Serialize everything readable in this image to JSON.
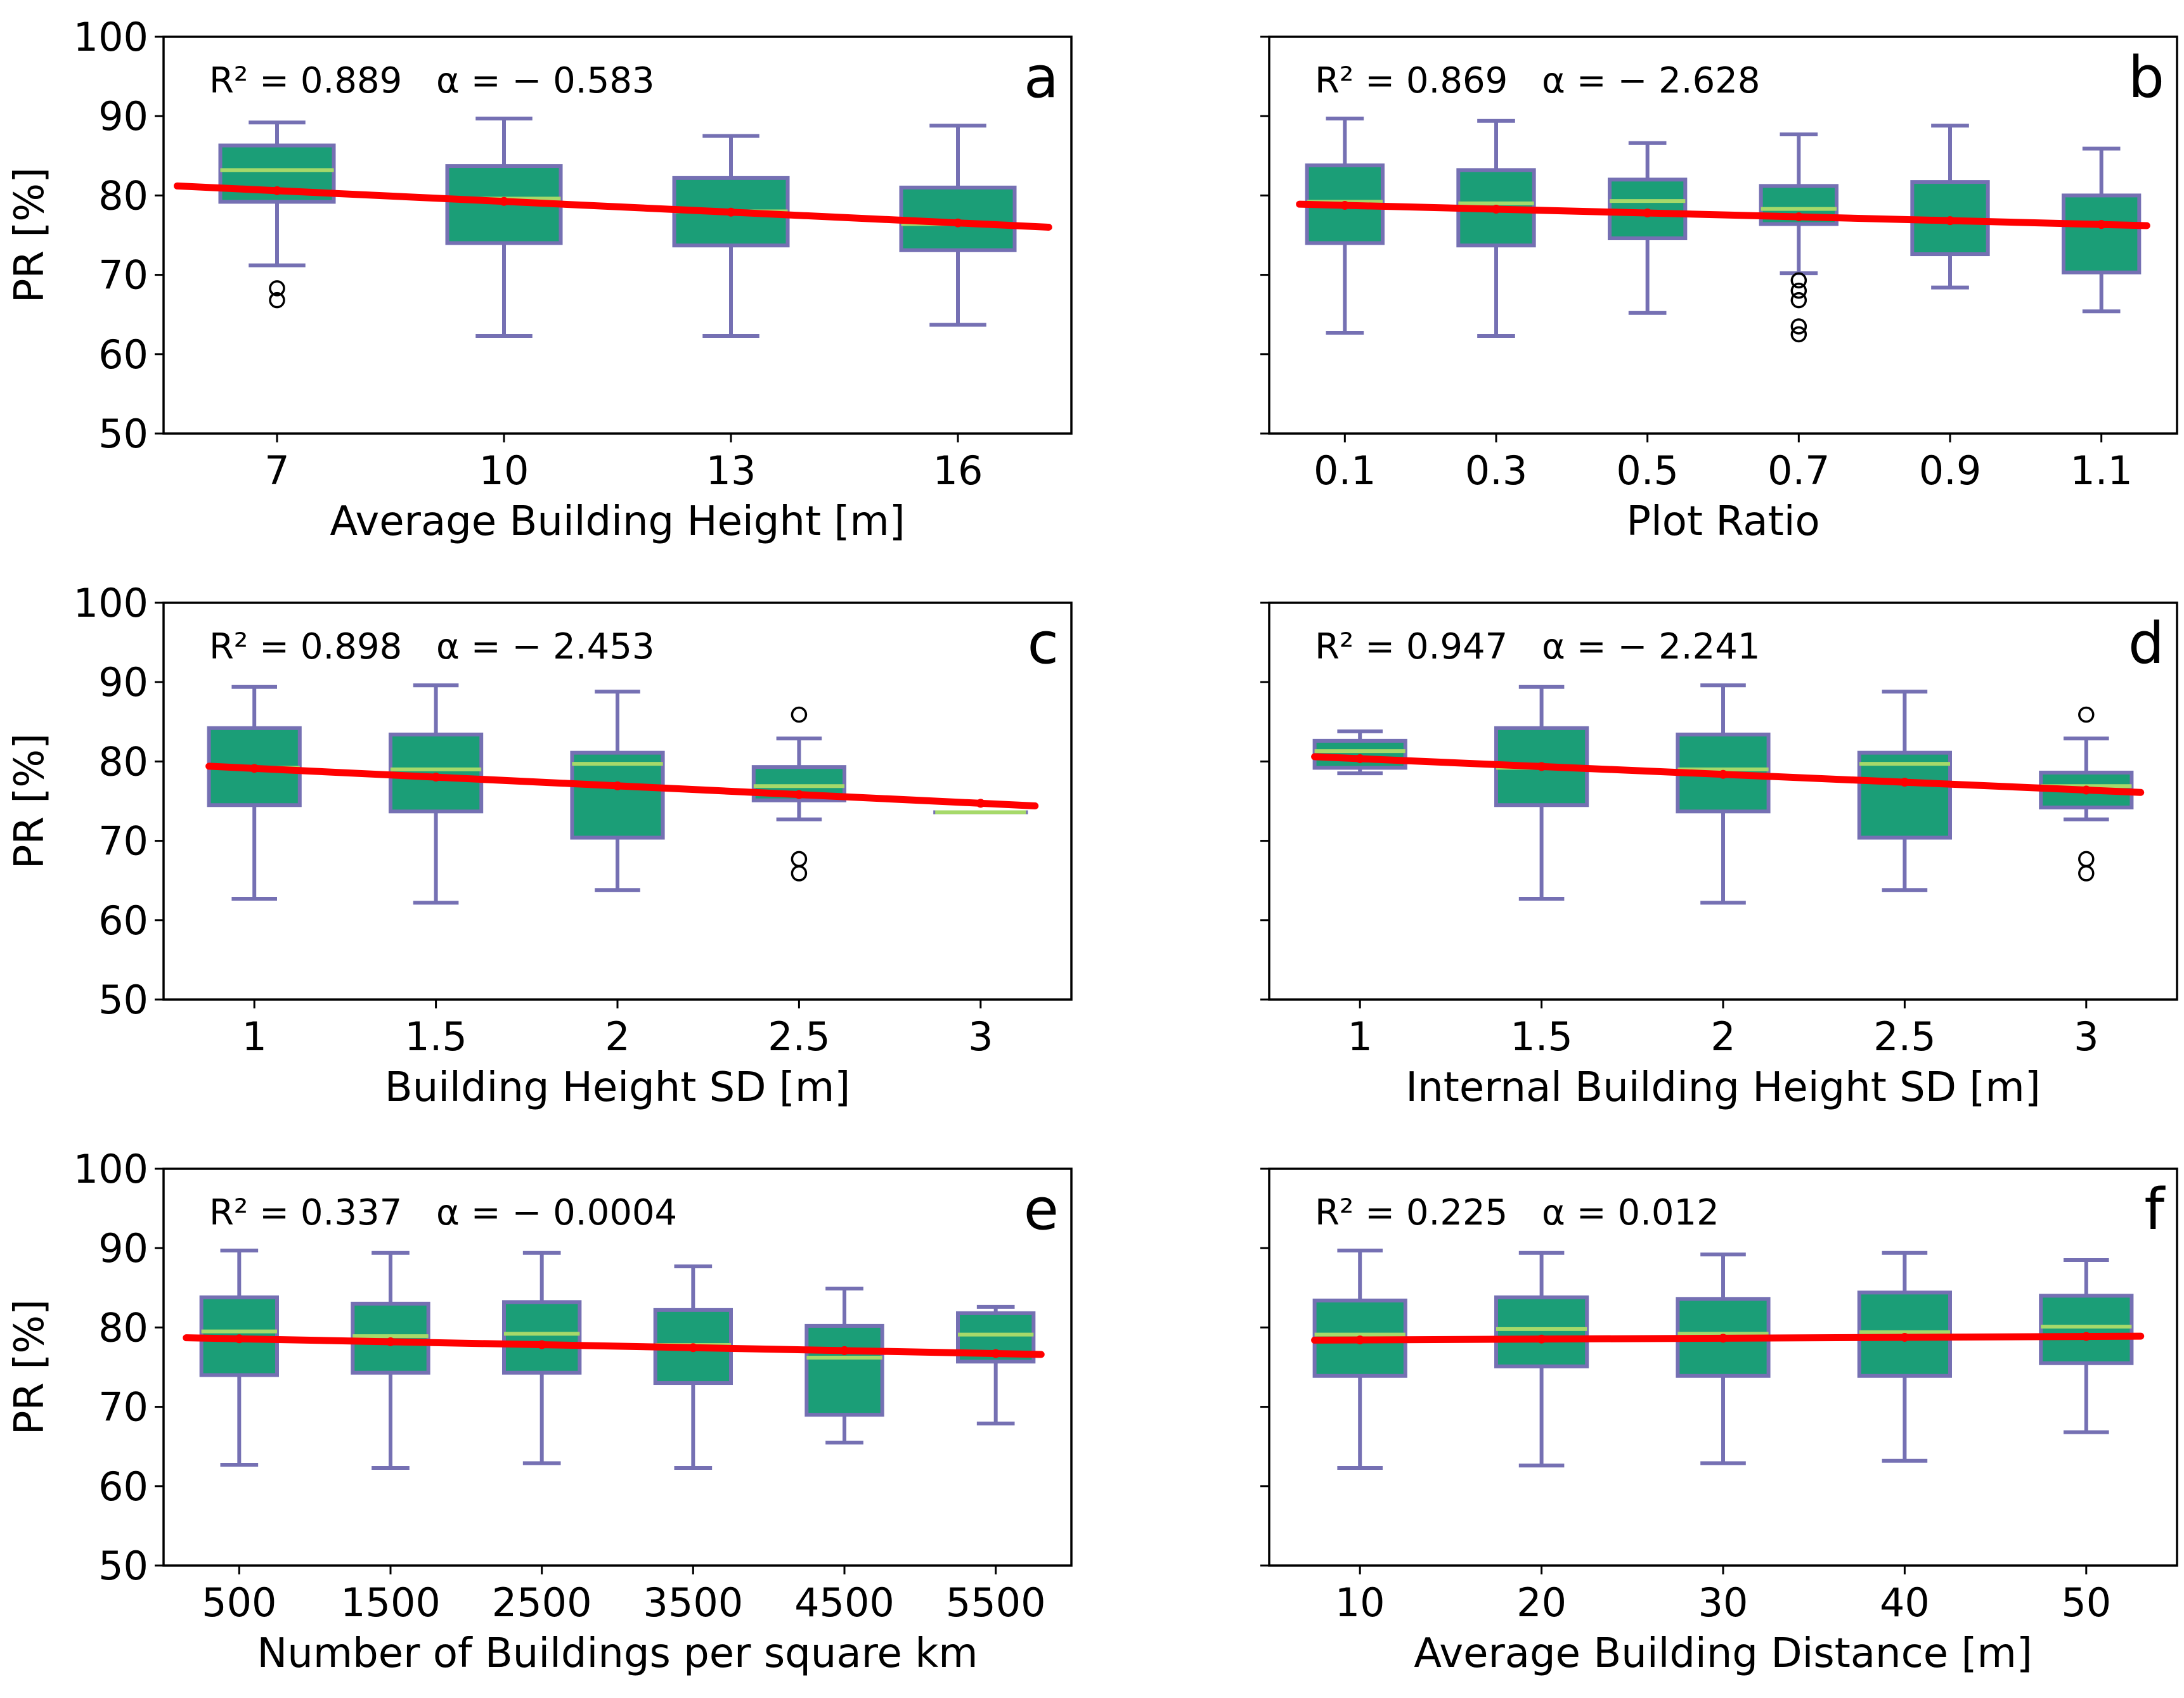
{
  "figure": {
    "y_axis_label": "PR [%]",
    "colors": {
      "box_fill": "#1b9e77",
      "box_edge": "#7570b3",
      "median": "#a6d96a",
      "fit_line": "#ff0000"
    }
  },
  "chart_data": [
    {
      "type": "box",
      "panel": "a",
      "r2_text": "R² = 0.889",
      "alpha_text": "α = − 0.583",
      "xlabel": "Average Building Height [m]",
      "ylabel": "PR [%]",
      "ylim": [
        50,
        100
      ],
      "yticks": [
        "50",
        "60",
        "70",
        "80",
        "90",
        "100"
      ],
      "categories": [
        "7",
        "10",
        "13",
        "16"
      ],
      "boxes": [
        {
          "whislo": 71.2,
          "q1": 79.2,
          "med": 83.2,
          "q3": 86.3,
          "whishi": 89.2,
          "fliers": [
            68.3,
            66.8
          ]
        },
        {
          "whislo": 62.3,
          "q1": 74.0,
          "med": 79.6,
          "q3": 83.7,
          "whishi": 89.7,
          "fliers": []
        },
        {
          "whislo": 62.3,
          "q1": 73.7,
          "med": 78.0,
          "q3": 82.2,
          "whishi": 87.5,
          "fliers": []
        },
        {
          "whislo": 63.7,
          "q1": 73.1,
          "med": 76.4,
          "q3": 81.0,
          "whishi": 88.8,
          "fliers": []
        }
      ],
      "fit": {
        "x_start": 0.56,
        "y_start": 81.2,
        "x_end": 4.4,
        "y_end": 76.0
      }
    },
    {
      "type": "box",
      "panel": "b",
      "r2_text": "R² = 0.869",
      "alpha_text": "α = − 2.628",
      "xlabel": "Plot Ratio",
      "ylabel": "",
      "ylim": [
        50,
        100
      ],
      "yticks": [],
      "categories": [
        "0.1",
        "0.3",
        "0.5",
        "0.7",
        "0.9",
        "1.1"
      ],
      "boxes": [
        {
          "whislo": 62.7,
          "q1": 74.0,
          "med": 79.2,
          "q3": 83.8,
          "whishi": 89.7,
          "fliers": []
        },
        {
          "whislo": 62.3,
          "q1": 73.7,
          "med": 79.0,
          "q3": 83.2,
          "whishi": 89.4,
          "fliers": []
        },
        {
          "whislo": 65.2,
          "q1": 74.6,
          "med": 79.3,
          "q3": 82.0,
          "whishi": 86.6,
          "fliers": []
        },
        {
          "whislo": 70.2,
          "q1": 76.4,
          "med": 78.3,
          "q3": 81.2,
          "whishi": 87.7,
          "fliers": [
            69.3,
            68.0,
            66.8,
            63.5,
            62.5
          ]
        },
        {
          "whislo": 68.4,
          "q1": 72.6,
          "med": 76.8,
          "q3": 81.7,
          "whishi": 88.8,
          "fliers": []
        },
        {
          "whislo": 65.4,
          "q1": 70.3,
          "med": 76.4,
          "q3": 80.0,
          "whishi": 85.9,
          "fliers": []
        }
      ],
      "fit": {
        "x_start": 0.7,
        "y_start": 78.9,
        "x_end": 6.3,
        "y_end": 76.2
      }
    },
    {
      "type": "box",
      "panel": "c",
      "r2_text": "R² = 0.898",
      "alpha_text": "α = − 2.453",
      "xlabel": "Building Height SD [m]",
      "ylabel": "PR [%]",
      "ylim": [
        50,
        100
      ],
      "yticks": [
        "50",
        "60",
        "70",
        "80",
        "90",
        "100"
      ],
      "categories": [
        "1",
        "1.5",
        "2",
        "2.5",
        "3"
      ],
      "boxes": [
        {
          "whislo": 62.7,
          "q1": 74.5,
          "med": 79.2,
          "q3": 84.2,
          "whishi": 89.4,
          "fliers": []
        },
        {
          "whislo": 62.2,
          "q1": 73.7,
          "med": 79.0,
          "q3": 83.4,
          "whishi": 89.6,
          "fliers": []
        },
        {
          "whislo": 63.8,
          "q1": 70.4,
          "med": 79.7,
          "q3": 81.1,
          "whishi": 88.8,
          "fliers": []
        },
        {
          "whislo": 72.7,
          "q1": 75.1,
          "med": 76.9,
          "q3": 79.3,
          "whishi": 82.9,
          "fliers": [
            85.9,
            67.7,
            65.9
          ]
        },
        {
          "whislo": 73.6,
          "q1": 73.6,
          "med": 73.6,
          "q3": 73.6,
          "whishi": 73.6,
          "fliers": []
        }
      ],
      "fit": {
        "x_start": 0.75,
        "y_start": 79.4,
        "x_end": 5.3,
        "y_end": 74.4
      }
    },
    {
      "type": "box",
      "panel": "d",
      "r2_text": "R² = 0.947",
      "alpha_text": "α = − 2.241",
      "xlabel": "Internal Building Height SD [m]",
      "ylabel": "",
      "ylim": [
        50,
        100
      ],
      "yticks": [],
      "categories": [
        "1",
        "1.5",
        "2",
        "2.5",
        "3"
      ],
      "boxes": [
        {
          "whislo": 78.5,
          "q1": 79.2,
          "med": 81.3,
          "q3": 82.6,
          "whishi": 83.8,
          "fliers": []
        },
        {
          "whislo": 62.7,
          "q1": 74.5,
          "med": 79.2,
          "q3": 84.2,
          "whishi": 89.4,
          "fliers": []
        },
        {
          "whislo": 62.2,
          "q1": 73.7,
          "med": 79.0,
          "q3": 83.4,
          "whishi": 89.6,
          "fliers": []
        },
        {
          "whislo": 63.8,
          "q1": 70.4,
          "med": 79.7,
          "q3": 81.1,
          "whishi": 88.8,
          "fliers": []
        },
        {
          "whislo": 72.7,
          "q1": 74.2,
          "med": 76.9,
          "q3": 78.6,
          "whishi": 82.9,
          "fliers": [
            85.9,
            67.7,
            65.9
          ]
        }
      ],
      "fit": {
        "x_start": 0.75,
        "y_start": 80.6,
        "x_end": 5.3,
        "y_end": 76.1
      }
    },
    {
      "type": "box",
      "panel": "e",
      "r2_text": "R² = 0.337",
      "alpha_text": "α = − 0.0004",
      "xlabel": "Number of Buildings per square km",
      "ylabel": "PR [%]",
      "ylim": [
        50,
        100
      ],
      "yticks": [
        "50",
        "60",
        "70",
        "80",
        "90",
        "100"
      ],
      "categories": [
        "500",
        "1500",
        "2500",
        "3500",
        "4500",
        "5500"
      ],
      "boxes": [
        {
          "whislo": 62.7,
          "q1": 74.0,
          "med": 79.5,
          "q3": 83.8,
          "whishi": 89.7,
          "fliers": []
        },
        {
          "whislo": 62.3,
          "q1": 74.3,
          "med": 78.9,
          "q3": 83.0,
          "whishi": 89.4,
          "fliers": []
        },
        {
          "whislo": 62.9,
          "q1": 74.3,
          "med": 79.2,
          "q3": 83.2,
          "whishi": 89.4,
          "fliers": []
        },
        {
          "whislo": 62.3,
          "q1": 73.0,
          "med": 77.8,
          "q3": 82.2,
          "whishi": 87.7,
          "fliers": []
        },
        {
          "whislo": 65.5,
          "q1": 69.0,
          "med": 76.2,
          "q3": 80.2,
          "whishi": 84.9,
          "fliers": []
        },
        {
          "whislo": 67.9,
          "q1": 75.7,
          "med": 79.1,
          "q3": 81.8,
          "whishi": 82.6,
          "fliers": []
        }
      ],
      "fit": {
        "x_start": 0.65,
        "y_start": 78.7,
        "x_end": 6.3,
        "y_end": 76.6
      }
    },
    {
      "type": "box",
      "panel": "f",
      "r2_text": "R² = 0.225",
      "alpha_text": "α = 0.012",
      "xlabel": "Average Building Distance [m]",
      "ylabel": "",
      "ylim": [
        50,
        100
      ],
      "yticks": [],
      "categories": [
        "10",
        "20",
        "30",
        "40",
        "50"
      ],
      "boxes": [
        {
          "whislo": 62.3,
          "q1": 73.9,
          "med": 79.1,
          "q3": 83.4,
          "whishi": 89.7,
          "fliers": []
        },
        {
          "whislo": 62.6,
          "q1": 75.1,
          "med": 79.8,
          "q3": 83.8,
          "whishi": 89.4,
          "fliers": []
        },
        {
          "whislo": 62.9,
          "q1": 73.9,
          "med": 79.2,
          "q3": 83.6,
          "whishi": 89.2,
          "fliers": []
        },
        {
          "whislo": 63.2,
          "q1": 73.9,
          "med": 79.4,
          "q3": 84.4,
          "whishi": 89.4,
          "fliers": []
        },
        {
          "whislo": 66.8,
          "q1": 75.5,
          "med": 80.1,
          "q3": 84.0,
          "whishi": 88.5,
          "fliers": []
        }
      ],
      "fit": {
        "x_start": 0.75,
        "y_start": 78.4,
        "x_end": 5.3,
        "y_end": 78.9
      }
    }
  ]
}
